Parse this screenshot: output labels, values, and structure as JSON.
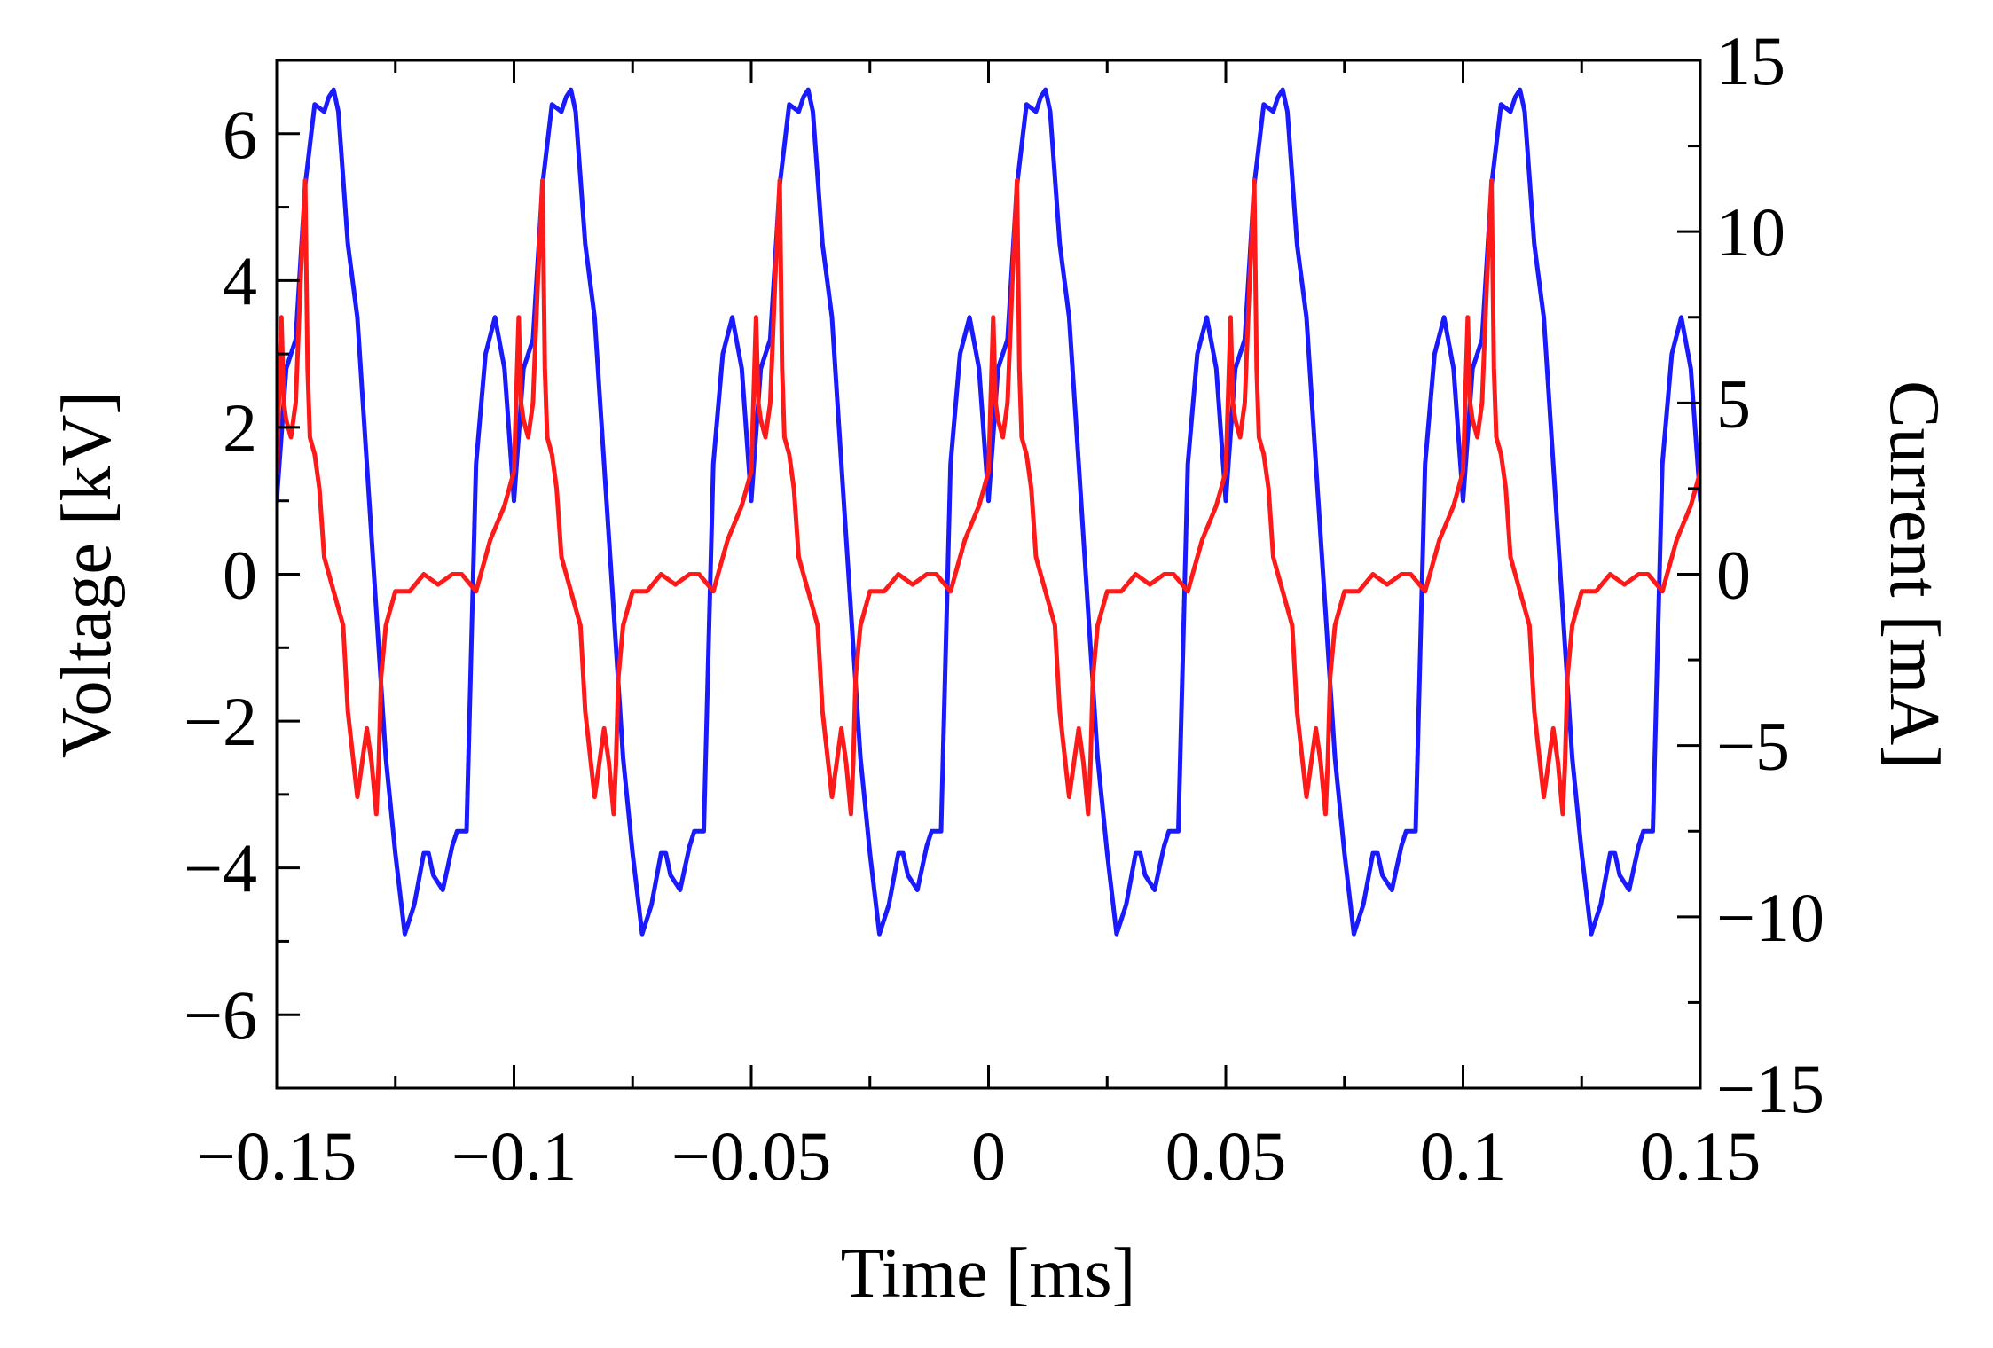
{
  "chart_data": {
    "type": "line",
    "title": "",
    "xlabel": "Time [ms]",
    "ylabel_left": "Voltage [kV]",
    "ylabel_right": "Current [mA]",
    "xlim": [
      -0.15,
      0.15
    ],
    "ylim_left": [
      -7,
      7
    ],
    "ylim_right": [
      -15,
      15
    ],
    "grid": false,
    "legend": "none",
    "x_ticks": [
      -0.15,
      -0.1,
      -0.05,
      0,
      0.05,
      0.1,
      0.15
    ],
    "x_tick_labels": [
      "−0.15",
      "−0.1",
      "−0.05",
      "0",
      "0.05",
      "0.1",
      "0.15"
    ],
    "y_left_ticks": [
      -6,
      -4,
      -2,
      0,
      2,
      4,
      6
    ],
    "y_left_tick_labels": [
      "−6",
      "−4",
      "−2",
      "0",
      "2",
      "4",
      "6"
    ],
    "y_right_ticks": [
      -15,
      -10,
      -5,
      0,
      5,
      10,
      15
    ],
    "y_right_tick_labels": [
      "−15",
      "−10",
      "−5",
      "0",
      "5",
      "10",
      "15"
    ],
    "period_ms": 0.05,
    "series": [
      {
        "name": "Voltage",
        "axis": "left",
        "color": "#1a1aff",
        "cycle_x": [
          0.0,
          0.002,
          0.004,
          0.006,
          0.008,
          0.01,
          0.011,
          0.012,
          0.013,
          0.015,
          0.017,
          0.019,
          0.021,
          0.023,
          0.025,
          0.027,
          0.029,
          0.031,
          0.032,
          0.033,
          0.035,
          0.036,
          0.037,
          0.038,
          0.04,
          0.042,
          0.044,
          0.046,
          0.048,
          0.05
        ],
        "cycle_y": [
          1.0,
          2.8,
          3.2,
          5.3,
          6.4,
          6.3,
          6.5,
          6.6,
          6.3,
          4.5,
          3.5,
          1.5,
          -0.5,
          -2.5,
          -3.8,
          -4.9,
          -4.5,
          -3.8,
          -3.8,
          -4.1,
          -4.3,
          -4.0,
          -3.7,
          -3.5,
          -3.5,
          1.5,
          3.0,
          3.5,
          2.8,
          1.0
        ]
      },
      {
        "name": "Current",
        "axis": "right",
        "color": "#ff1a1a",
        "cycle_x": [
          0.0,
          0.001,
          0.0015,
          0.002,
          0.003,
          0.004,
          0.005,
          0.006,
          0.0065,
          0.007,
          0.008,
          0.009,
          0.01,
          0.012,
          0.014,
          0.015,
          0.017,
          0.019,
          0.02,
          0.021,
          0.0215,
          0.022,
          0.023,
          0.025,
          0.028,
          0.031,
          0.034,
          0.037,
          0.039,
          0.042,
          0.045,
          0.048,
          0.049,
          0.05
        ],
        "cycle_y": [
          3.0,
          7.5,
          5.0,
          4.5,
          4.0,
          5.0,
          8.5,
          11.5,
          6.0,
          4.0,
          3.5,
          2.5,
          0.5,
          -0.5,
          -1.5,
          -4.0,
          -6.5,
          -4.5,
          -5.5,
          -7.0,
          -5.5,
          -3.0,
          -1.5,
          -0.5,
          -0.5,
          0.0,
          -0.3,
          0.0,
          0.0,
          -0.5,
          1.0,
          2.0,
          2.5,
          3.0
        ]
      }
    ]
  }
}
